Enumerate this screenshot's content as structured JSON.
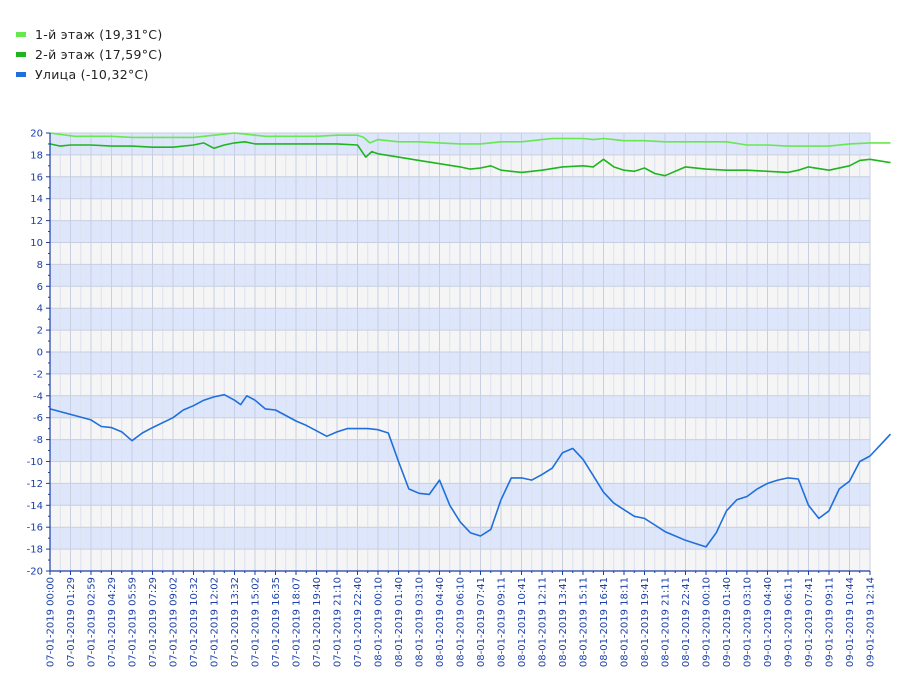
{
  "colors": {
    "floor1": "#66e84f",
    "floor2": "#1fb51f",
    "street": "#1f6fdc",
    "axis": "#1a3fa8"
  },
  "chart_data": {
    "type": "line",
    "title": "",
    "xlabel": "",
    "ylabel": "",
    "ylim": [
      -20,
      20
    ],
    "y_ticks": [
      20,
      18,
      16,
      14,
      12,
      10,
      8,
      6,
      4,
      2,
      0,
      -2,
      -4,
      -6,
      -8,
      -10,
      -12,
      -14,
      -16,
      -18,
      -20
    ],
    "grid": true,
    "legend": "top-left",
    "x_ticks": [
      "07-01-2019 00:00",
      "07-01-2019 01:29",
      "07-01-2019 02:59",
      "07-01-2019 04:29",
      "07-01-2019 05:59",
      "07-01-2019 07:29",
      "07-01-2019 09:02",
      "07-01-2019 10:32",
      "07-01-2019 12:02",
      "07-01-2019 13:32",
      "07-01-2019 15:02",
      "07-01-2019 16:35",
      "07-01-2019 18:07",
      "07-01-2019 19:40",
      "07-01-2019 21:10",
      "07-01-2019 22:40",
      "08-01-2019 00:10",
      "08-01-2019 01:40",
      "08-01-2019 03:10",
      "08-01-2019 04:40",
      "08-01-2019 06:10",
      "08-01-2019 07:41",
      "08-01-2019 09:11",
      "08-01-2019 10:41",
      "08-01-2019 12:11",
      "08-01-2019 13:41",
      "08-01-2019 15:11",
      "08-01-2019 16:41",
      "08-01-2019 18:11",
      "08-01-2019 19:41",
      "08-01-2019 21:11",
      "08-01-2019 22:41",
      "09-01-2019 00:10",
      "09-01-2019 01:40",
      "09-01-2019 03:10",
      "09-01-2019 04:40",
      "09-01-2019 06:11",
      "09-01-2019 07:41",
      "09-01-2019 09:11",
      "09-01-2019 10:44",
      "09-01-2019 12:14"
    ],
    "series": [
      {
        "name": "1-й этаж (19,31°C)",
        "color": "#66e84f",
        "x": [
          0,
          1.2,
          2,
          3,
          4,
          5,
          6,
          7,
          8,
          8.5,
          9,
          9.5,
          10,
          10.5,
          11,
          12,
          13,
          14,
          15,
          15.3,
          15.6,
          16,
          17,
          18,
          19,
          20,
          21,
          22,
          23,
          24,
          24.5,
          25,
          26,
          26.5,
          27,
          27.5,
          28,
          29,
          30,
          31,
          32,
          33,
          34,
          35,
          36,
          37,
          38,
          39,
          40,
          41
        ],
        "y": [
          20,
          19.7,
          19.7,
          19.7,
          19.6,
          19.6,
          19.6,
          19.6,
          19.8,
          19.9,
          20,
          19.9,
          19.8,
          19.7,
          19.7,
          19.7,
          19.7,
          19.8,
          19.8,
          19.6,
          19.1,
          19.4,
          19.2,
          19.2,
          19.1,
          19.0,
          19.0,
          19.2,
          19.2,
          19.4,
          19.5,
          19.5,
          19.5,
          19.4,
          19.5,
          19.4,
          19.3,
          19.3,
          19.2,
          19.2,
          19.2,
          19.2,
          18.9,
          18.9,
          18.8,
          18.8,
          18.8,
          19.0,
          19.1,
          19.1
        ]
      },
      {
        "name": "2-й этаж (17,59°C)",
        "color": "#1fb51f",
        "x": [
          0,
          0.5,
          1,
          2,
          3,
          4,
          5,
          6,
          7,
          7.5,
          8,
          8.5,
          9,
          9.5,
          10,
          11,
          12,
          13,
          14,
          15,
          15.4,
          15.7,
          16,
          17,
          18,
          19,
          20,
          20.5,
          21,
          21.5,
          22,
          23,
          24,
          25,
          26,
          26.5,
          27,
          27.5,
          28,
          28.5,
          29,
          29.5,
          30,
          31,
          32,
          33,
          34,
          35,
          36,
          36.5,
          37,
          38,
          39,
          39.5,
          40,
          41
        ],
        "y": [
          19.0,
          18.8,
          18.9,
          18.9,
          18.8,
          18.8,
          18.7,
          18.7,
          18.9,
          19.1,
          18.6,
          18.9,
          19.1,
          19.2,
          19.0,
          19.0,
          19.0,
          19.0,
          19.0,
          18.9,
          17.8,
          18.3,
          18.1,
          17.8,
          17.5,
          17.2,
          16.9,
          16.7,
          16.8,
          17.0,
          16.6,
          16.4,
          16.6,
          16.9,
          17.0,
          16.9,
          17.6,
          16.9,
          16.6,
          16.5,
          16.8,
          16.3,
          16.1,
          16.9,
          16.7,
          16.6,
          16.6,
          16.5,
          16.4,
          16.6,
          16.9,
          16.6,
          17.0,
          17.5,
          17.6,
          17.3
        ]
      },
      {
        "name": "Улица (-10,32°C)",
        "color": "#1f6fdc",
        "x": [
          0,
          1,
          2,
          2.5,
          3,
          3.5,
          4,
          4.5,
          5,
          6,
          6.5,
          7,
          7.5,
          8,
          8.5,
          9,
          9.3,
          9.6,
          10,
          10.5,
          11,
          12,
          12.5,
          13,
          13.5,
          14,
          14.5,
          15,
          15.5,
          16,
          16.5,
          17,
          17.5,
          18,
          18.5,
          19,
          19.5,
          20,
          20.5,
          21,
          21.5,
          22,
          22.5,
          23,
          23.5,
          24,
          24.5,
          25,
          25.5,
          26,
          26.5,
          27,
          27.5,
          28,
          28.5,
          29,
          29.5,
          30,
          30.5,
          31,
          31.5,
          32,
          32.5,
          33,
          33.5,
          34,
          34.5,
          35,
          35.5,
          36,
          36.5,
          37,
          37.5,
          38,
          38.5,
          39,
          39.5,
          40,
          40.5,
          41
        ],
        "y": [
          -5.2,
          -5.7,
          -6.2,
          -6.8,
          -6.9,
          -7.3,
          -8.1,
          -7.4,
          -6.9,
          -6.0,
          -5.3,
          -4.9,
          -4.4,
          -4.1,
          -3.9,
          -4.4,
          -4.8,
          -4.0,
          -4.4,
          -5.2,
          -5.3,
          -6.3,
          -6.7,
          -7.2,
          -7.7,
          -7.3,
          -7.0,
          -7.0,
          -7.0,
          -7.1,
          -7.4,
          -10.0,
          -12.5,
          -12.9,
          -13.0,
          -11.7,
          -14.0,
          -15.5,
          -16.5,
          -16.8,
          -16.2,
          -13.5,
          -11.5,
          -11.5,
          -11.7,
          -11.2,
          -10.6,
          -9.2,
          -8.8,
          -9.8,
          -11.3,
          -12.8,
          -13.8,
          -14.4,
          -15.0,
          -15.2,
          -15.8,
          -16.4,
          -16.8,
          -17.2,
          -17.5,
          -17.8,
          -16.5,
          -14.5,
          -13.5,
          -13.2,
          -12.5,
          -12.0,
          -11.7,
          -11.5,
          -11.6,
          -14.0,
          -15.2,
          -14.5,
          -12.5,
          -11.8,
          -10.0,
          -9.5,
          -8.5,
          -7.5
        ]
      }
    ]
  }
}
